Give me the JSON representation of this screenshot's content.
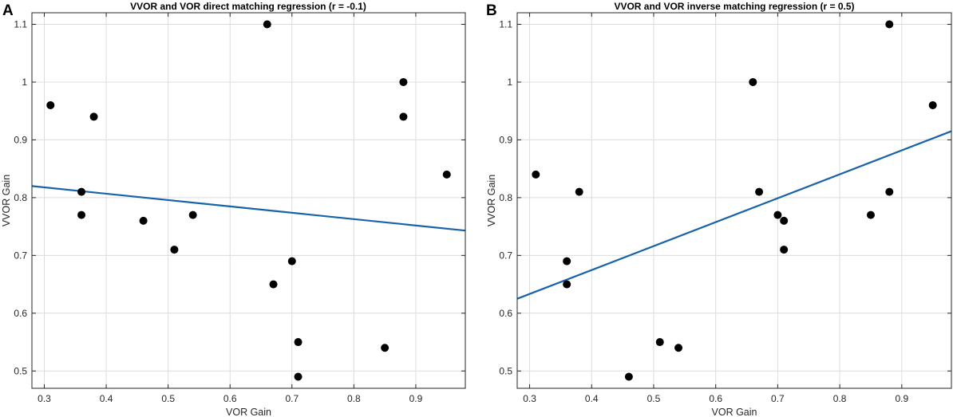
{
  "chart_data": [
    {
      "type": "scatter",
      "panel_label": "A",
      "title": "VVOR and VOR direct matching regression (r = -0.1)",
      "xlabel": "VOR Gain",
      "ylabel": "VVOR Gain",
      "xlim": [
        0.28,
        0.98
      ],
      "ylim": [
        0.47,
        1.12
      ],
      "xticks": [
        0.3,
        0.4,
        0.5,
        0.6,
        0.7,
        0.8,
        0.9
      ],
      "xtick_labels": [
        "0.3",
        "0.4",
        "0.5",
        "0.6",
        "0.7",
        "0.8",
        "0.9"
      ],
      "yticks": [
        0.5,
        0.6,
        0.7,
        0.8,
        0.9,
        1.0,
        1.1
      ],
      "ytick_labels": [
        "0.5",
        "0.6",
        "0.7",
        "0.8",
        "0.9",
        "1",
        "1.1"
      ],
      "grid": true,
      "points": [
        {
          "x": 0.31,
          "y": 0.96
        },
        {
          "x": 0.36,
          "y": 0.81
        },
        {
          "x": 0.36,
          "y": 0.77
        },
        {
          "x": 0.38,
          "y": 0.94
        },
        {
          "x": 0.46,
          "y": 0.76
        },
        {
          "x": 0.51,
          "y": 0.71
        },
        {
          "x": 0.54,
          "y": 0.77
        },
        {
          "x": 0.66,
          "y": 1.1
        },
        {
          "x": 0.67,
          "y": 0.65
        },
        {
          "x": 0.7,
          "y": 0.69
        },
        {
          "x": 0.71,
          "y": 0.55
        },
        {
          "x": 0.71,
          "y": 0.49
        },
        {
          "x": 0.85,
          "y": 0.54
        },
        {
          "x": 0.88,
          "y": 1.0
        },
        {
          "x": 0.88,
          "y": 0.94
        },
        {
          "x": 0.95,
          "y": 0.84
        }
      ],
      "regression": {
        "x": [
          0.28,
          0.98
        ],
        "y": [
          0.82,
          0.743
        ],
        "color": "#1763aa"
      }
    },
    {
      "type": "scatter",
      "panel_label": "B",
      "title": "VVOR and VOR inverse matching regression (r = 0.5)",
      "xlabel": "VOR Gain",
      "ylabel": "VVOR Gain",
      "xlim": [
        0.28,
        0.98
      ],
      "ylim": [
        0.47,
        1.12
      ],
      "xticks": [
        0.3,
        0.4,
        0.5,
        0.6,
        0.7,
        0.8,
        0.9
      ],
      "xtick_labels": [
        "0.3",
        "0.4",
        "0.5",
        "0.6",
        "0.7",
        "0.8",
        "0.9"
      ],
      "yticks": [
        0.5,
        0.6,
        0.7,
        0.8,
        0.9,
        1.0,
        1.1
      ],
      "ytick_labels": [
        "0.5",
        "0.6",
        "0.7",
        "0.8",
        "0.9",
        "1",
        "1.1"
      ],
      "grid": true,
      "points": [
        {
          "x": 0.31,
          "y": 0.84
        },
        {
          "x": 0.36,
          "y": 0.69
        },
        {
          "x": 0.36,
          "y": 0.65
        },
        {
          "x": 0.38,
          "y": 0.81
        },
        {
          "x": 0.46,
          "y": 0.49
        },
        {
          "x": 0.51,
          "y": 0.55
        },
        {
          "x": 0.54,
          "y": 0.54
        },
        {
          "x": 0.66,
          "y": 1.0
        },
        {
          "x": 0.67,
          "y": 0.81
        },
        {
          "x": 0.7,
          "y": 0.77
        },
        {
          "x": 0.71,
          "y": 0.76
        },
        {
          "x": 0.71,
          "y": 0.71
        },
        {
          "x": 0.85,
          "y": 0.77
        },
        {
          "x": 0.88,
          "y": 1.1
        },
        {
          "x": 0.88,
          "y": 0.81
        },
        {
          "x": 0.95,
          "y": 0.96
        }
      ],
      "regression": {
        "x": [
          0.28,
          0.98
        ],
        "y": [
          0.625,
          0.915
        ],
        "color": "#1763aa"
      }
    }
  ]
}
